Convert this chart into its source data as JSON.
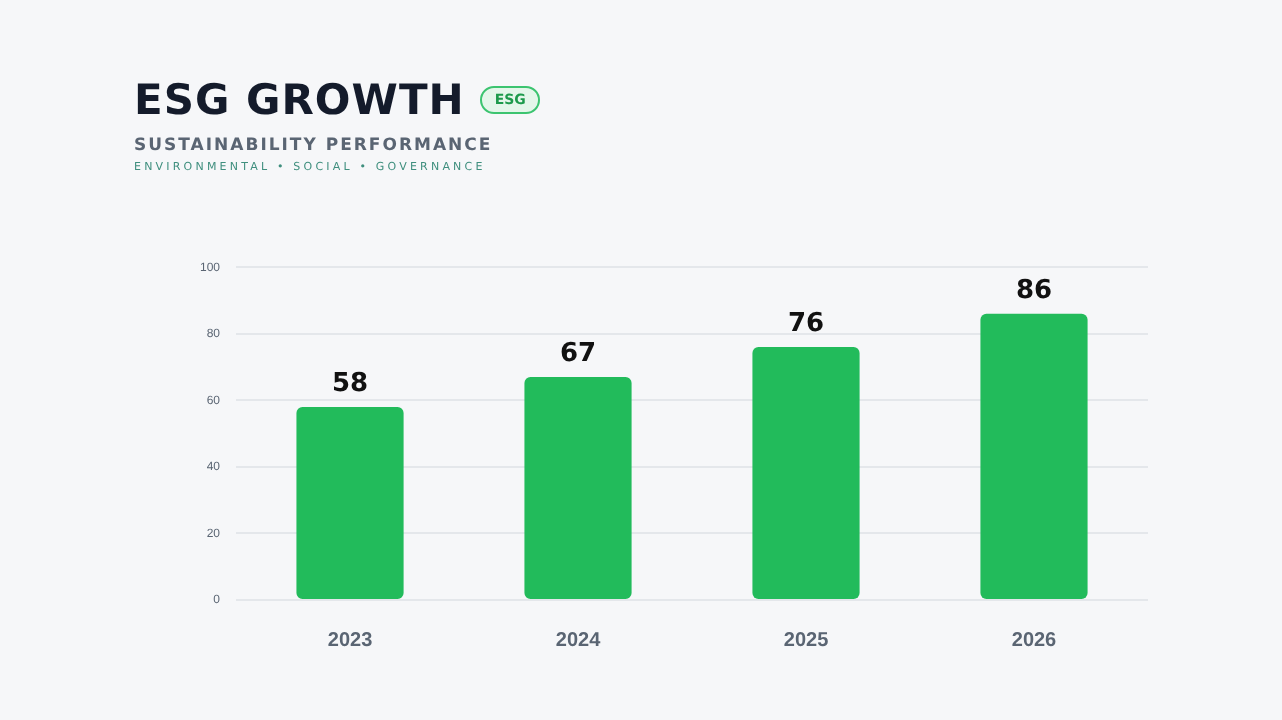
{
  "chart_data": {
    "type": "bar",
    "title": "ESG GROWTH",
    "subtitle": "SUSTAINABILITY PERFORMANCE",
    "annotations": [
      "ESG",
      "ENVIRONMENTAL • SOCIAL • GOVERNANCE"
    ],
    "categories": [
      "2023",
      "2024",
      "2025",
      "2026"
    ],
    "values": [
      58,
      67,
      76,
      86
    ],
    "color": "#22bb5b",
    "ylim": [
      0,
      100
    ],
    "yticks": [
      0,
      20,
      40,
      60,
      80,
      100
    ],
    "grid": "y",
    "data_labels": true,
    "legend": false
  }
}
